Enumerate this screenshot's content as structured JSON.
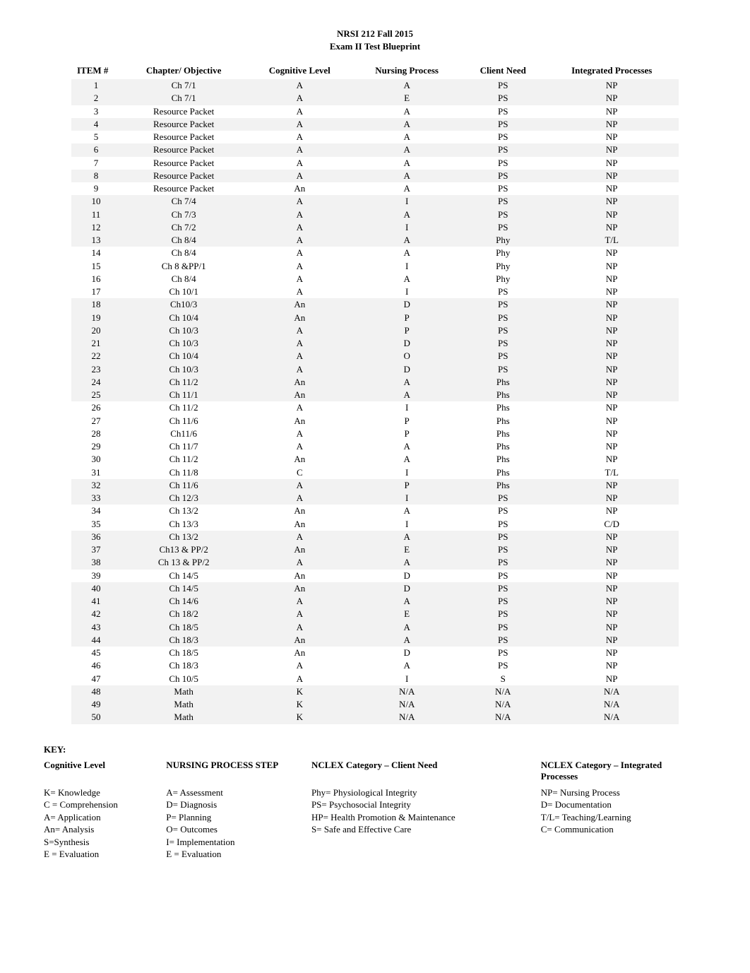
{
  "title": "NRSI 212 Fall 2015",
  "subtitle": "Exam II Test Blueprint",
  "colors": {
    "page_bg": "#ffffff",
    "text": "#000000",
    "row_shade": "#f2f2f2"
  },
  "fonts": {
    "family": "Times New Roman",
    "body_size_pt": 10,
    "title_weight": "bold"
  },
  "columns": [
    {
      "key": "item",
      "label": "ITEM #"
    },
    {
      "key": "chapter",
      "label": "Chapter/ Objective"
    },
    {
      "key": "cognitive",
      "label": "Cognitive Level"
    },
    {
      "key": "nursing",
      "label": "Nursing Process"
    },
    {
      "key": "client",
      "label": "Client Need"
    },
    {
      "key": "integrated",
      "label": "Integrated Processes"
    }
  ],
  "rows": [
    {
      "item": "1",
      "chapter": "Ch 7/1",
      "cognitive": "A",
      "nursing": "A",
      "client": "PS",
      "integrated": "NP",
      "shade": true
    },
    {
      "item": "2",
      "chapter": "Ch 7/1",
      "cognitive": "A",
      "nursing": "E",
      "client": "PS",
      "integrated": "NP",
      "shade": true
    },
    {
      "item": "3",
      "chapter": "Resource Packet",
      "cognitive": "A",
      "nursing": "A",
      "client": "PS",
      "integrated": "NP",
      "shade": false
    },
    {
      "item": "4",
      "chapter": "Resource Packet",
      "cognitive": "A",
      "nursing": "A",
      "client": "PS",
      "integrated": "NP",
      "shade": true
    },
    {
      "item": "5",
      "chapter": "Resource Packet",
      "cognitive": "A",
      "nursing": "A",
      "client": "PS",
      "integrated": "NP",
      "shade": false
    },
    {
      "item": "6",
      "chapter": "Resource Packet",
      "cognitive": "A",
      "nursing": "A",
      "client": "PS",
      "integrated": "NP",
      "shade": true
    },
    {
      "item": "7",
      "chapter": "Resource Packet",
      "cognitive": "A",
      "nursing": "A",
      "client": "PS",
      "integrated": "NP",
      "shade": false
    },
    {
      "item": "8",
      "chapter": "Resource Packet",
      "cognitive": "A",
      "nursing": "A",
      "client": "PS",
      "integrated": "NP",
      "shade": true
    },
    {
      "item": "9",
      "chapter": "Resource Packet",
      "cognitive": "An",
      "nursing": "A",
      "client": "PS",
      "integrated": "NP",
      "shade": false
    },
    {
      "item": "10",
      "chapter": "Ch 7/4",
      "cognitive": "A",
      "nursing": "I",
      "client": "PS",
      "integrated": "NP",
      "shade": true
    },
    {
      "item": "11",
      "chapter": "Ch 7/3",
      "cognitive": "A",
      "nursing": "A",
      "client": "PS",
      "integrated": "NP",
      "shade": true
    },
    {
      "item": "12",
      "chapter": "Ch 7/2",
      "cognitive": "A",
      "nursing": "I",
      "client": "PS",
      "integrated": "NP",
      "shade": true
    },
    {
      "item": "13",
      "chapter": "Ch 8/4",
      "cognitive": "A",
      "nursing": "A",
      "client": "Phy",
      "integrated": "T/L",
      "shade": true
    },
    {
      "item": "14",
      "chapter": "Ch 8/4",
      "cognitive": "A",
      "nursing": "A",
      "client": "Phy",
      "integrated": "NP",
      "shade": false
    },
    {
      "item": "15",
      "chapter": "Ch 8 &PP/1",
      "cognitive": "A",
      "nursing": "I",
      "client": "Phy",
      "integrated": "NP",
      "shade": false
    },
    {
      "item": "16",
      "chapter": "Ch 8/4",
      "cognitive": "A",
      "nursing": "A",
      "client": "Phy",
      "integrated": "NP",
      "shade": false
    },
    {
      "item": "17",
      "chapter": "Ch 10/1",
      "cognitive": "A",
      "nursing": "I",
      "client": "PS",
      "integrated": "NP",
      "shade": false
    },
    {
      "item": "18",
      "chapter": "Ch10/3",
      "cognitive": "An",
      "nursing": "D",
      "client": "PS",
      "integrated": "NP",
      "shade": true
    },
    {
      "item": "19",
      "chapter": "Ch 10/4",
      "cognitive": "An",
      "nursing": "P",
      "client": "PS",
      "integrated": "NP",
      "shade": true
    },
    {
      "item": "20",
      "chapter": "Ch 10/3",
      "cognitive": "A",
      "nursing": "P",
      "client": "PS",
      "integrated": "NP",
      "shade": true
    },
    {
      "item": "21",
      "chapter": "Ch 10/3",
      "cognitive": "A",
      "nursing": "D",
      "client": "PS",
      "integrated": "NP",
      "shade": true
    },
    {
      "item": "22",
      "chapter": "Ch 10/4",
      "cognitive": "A",
      "nursing": "O",
      "client": "PS",
      "integrated": "NP",
      "shade": true
    },
    {
      "item": "23",
      "chapter": "Ch 10/3",
      "cognitive": "A",
      "nursing": "D",
      "client": "PS",
      "integrated": "NP",
      "shade": true
    },
    {
      "item": "24",
      "chapter": "Ch 11/2",
      "cognitive": "An",
      "nursing": "A",
      "client": "Phs",
      "integrated": "NP",
      "shade": true
    },
    {
      "item": "25",
      "chapter": "Ch 11/1",
      "cognitive": "An",
      "nursing": "A",
      "client": "Phs",
      "integrated": "NP",
      "shade": true
    },
    {
      "item": "26",
      "chapter": "Ch 11/2",
      "cognitive": "A",
      "nursing": "I",
      "client": "Phs",
      "integrated": "NP",
      "shade": false
    },
    {
      "item": "27",
      "chapter": "Ch 11/6",
      "cognitive": "An",
      "nursing": "P",
      "client": "Phs",
      "integrated": "NP",
      "shade": false
    },
    {
      "item": "28",
      "chapter": "Ch11/6",
      "cognitive": "A",
      "nursing": "P",
      "client": "Phs",
      "integrated": "NP",
      "shade": false
    },
    {
      "item": "29",
      "chapter": "Ch 11/7",
      "cognitive": "A",
      "nursing": "A",
      "client": "Phs",
      "integrated": "NP",
      "shade": false
    },
    {
      "item": "30",
      "chapter": "Ch 11/2",
      "cognitive": "An",
      "nursing": "A",
      "client": "Phs",
      "integrated": "NP",
      "shade": false
    },
    {
      "item": "31",
      "chapter": "Ch 11/8",
      "cognitive": "C",
      "nursing": "I",
      "client": "Phs",
      "integrated": "T/L",
      "shade": false
    },
    {
      "item": "32",
      "chapter": "Ch 11/6",
      "cognitive": "A",
      "nursing": "P",
      "client": "Phs",
      "integrated": "NP",
      "shade": true
    },
    {
      "item": "33",
      "chapter": "Ch 12/3",
      "cognitive": "A",
      "nursing": "I",
      "client": "PS",
      "integrated": "NP",
      "shade": true
    },
    {
      "item": "34",
      "chapter": "Ch 13/2",
      "cognitive": "An",
      "nursing": "A",
      "client": "PS",
      "integrated": "NP",
      "shade": false
    },
    {
      "item": "35",
      "chapter": "Ch 13/3",
      "cognitive": "An",
      "nursing": "I",
      "client": "PS",
      "integrated": "C/D",
      "shade": false
    },
    {
      "item": "36",
      "chapter": "Ch 13/2",
      "cognitive": "A",
      "nursing": "A",
      "client": "PS",
      "integrated": "NP",
      "shade": true
    },
    {
      "item": "37",
      "chapter": "Ch13 & PP/2",
      "cognitive": "An",
      "nursing": "E",
      "client": "PS",
      "integrated": "NP",
      "shade": true
    },
    {
      "item": "38",
      "chapter": "Ch 13 & PP/2",
      "cognitive": "A",
      "nursing": "A",
      "client": "PS",
      "integrated": "NP",
      "shade": true
    },
    {
      "item": "39",
      "chapter": "Ch 14/5",
      "cognitive": "An",
      "nursing": "D",
      "client": "PS",
      "integrated": "NP",
      "shade": false
    },
    {
      "item": "40",
      "chapter": "Ch 14/5",
      "cognitive": "An",
      "nursing": "D",
      "client": "PS",
      "integrated": "NP",
      "shade": true
    },
    {
      "item": "41",
      "chapter": "Ch 14/6",
      "cognitive": "A",
      "nursing": "A",
      "client": "PS",
      "integrated": "NP",
      "shade": true
    },
    {
      "item": "42",
      "chapter": "Ch 18/2",
      "cognitive": "A",
      "nursing": "E",
      "client": "PS",
      "integrated": "NP",
      "shade": true
    },
    {
      "item": "43",
      "chapter": "Ch 18/5",
      "cognitive": "A",
      "nursing": "A",
      "client": "PS",
      "integrated": "NP",
      "shade": true
    },
    {
      "item": "44",
      "chapter": "Ch 18/3",
      "cognitive": "An",
      "nursing": "A",
      "client": "PS",
      "integrated": "NP",
      "shade": true
    },
    {
      "item": "45",
      "chapter": "Ch 18/5",
      "cognitive": "An",
      "nursing": "D",
      "client": "PS",
      "integrated": "NP",
      "shade": false
    },
    {
      "item": "46",
      "chapter": "Ch 18/3",
      "cognitive": "A",
      "nursing": "A",
      "client": "PS",
      "integrated": "NP",
      "shade": false
    },
    {
      "item": "47",
      "chapter": "Ch 10/5",
      "cognitive": "A",
      "nursing": "I",
      "client": "S",
      "integrated": "NP",
      "shade": false
    },
    {
      "item": "48",
      "chapter": "Math",
      "cognitive": "K",
      "nursing": "N/A",
      "client": "N/A",
      "integrated": "N/A",
      "shade": true
    },
    {
      "item": "49",
      "chapter": "Math",
      "cognitive": "K",
      "nursing": "N/A",
      "client": "N/A",
      "integrated": "N/A",
      "shade": true
    },
    {
      "item": "50",
      "chapter": "Math",
      "cognitive": "K",
      "nursing": "N/A",
      "client": "N/A",
      "integrated": "N/A",
      "shade": true
    }
  ],
  "key": {
    "heading": "KEY:",
    "headers": {
      "cognitive": "Cognitive Level",
      "nps": "NURSING PROCESS STEP",
      "client": "NCLEX Category – Client Need",
      "integrated": "NCLEX Category – Integrated Processes"
    },
    "cognitive": [
      "K= Knowledge",
      "C = Comprehension",
      "A= Application",
      "An= Analysis",
      "S=Synthesis",
      "E = Evaluation"
    ],
    "nps": [
      "A= Assessment",
      "D= Diagnosis",
      "P= Planning",
      "O= Outcomes",
      "I= Implementation",
      "E = Evaluation"
    ],
    "client_first": " Phy= Physiological Integrity",
    "client": [
      "PS= Psychosocial Integrity",
      "HP= Health Promotion & Maintenance",
      "S= Safe and Effective Care"
    ],
    "integrated": [
      "NP= Nursing Process",
      "D= Documentation",
      "T/L= Teaching/Learning",
      "C= Communication"
    ]
  }
}
